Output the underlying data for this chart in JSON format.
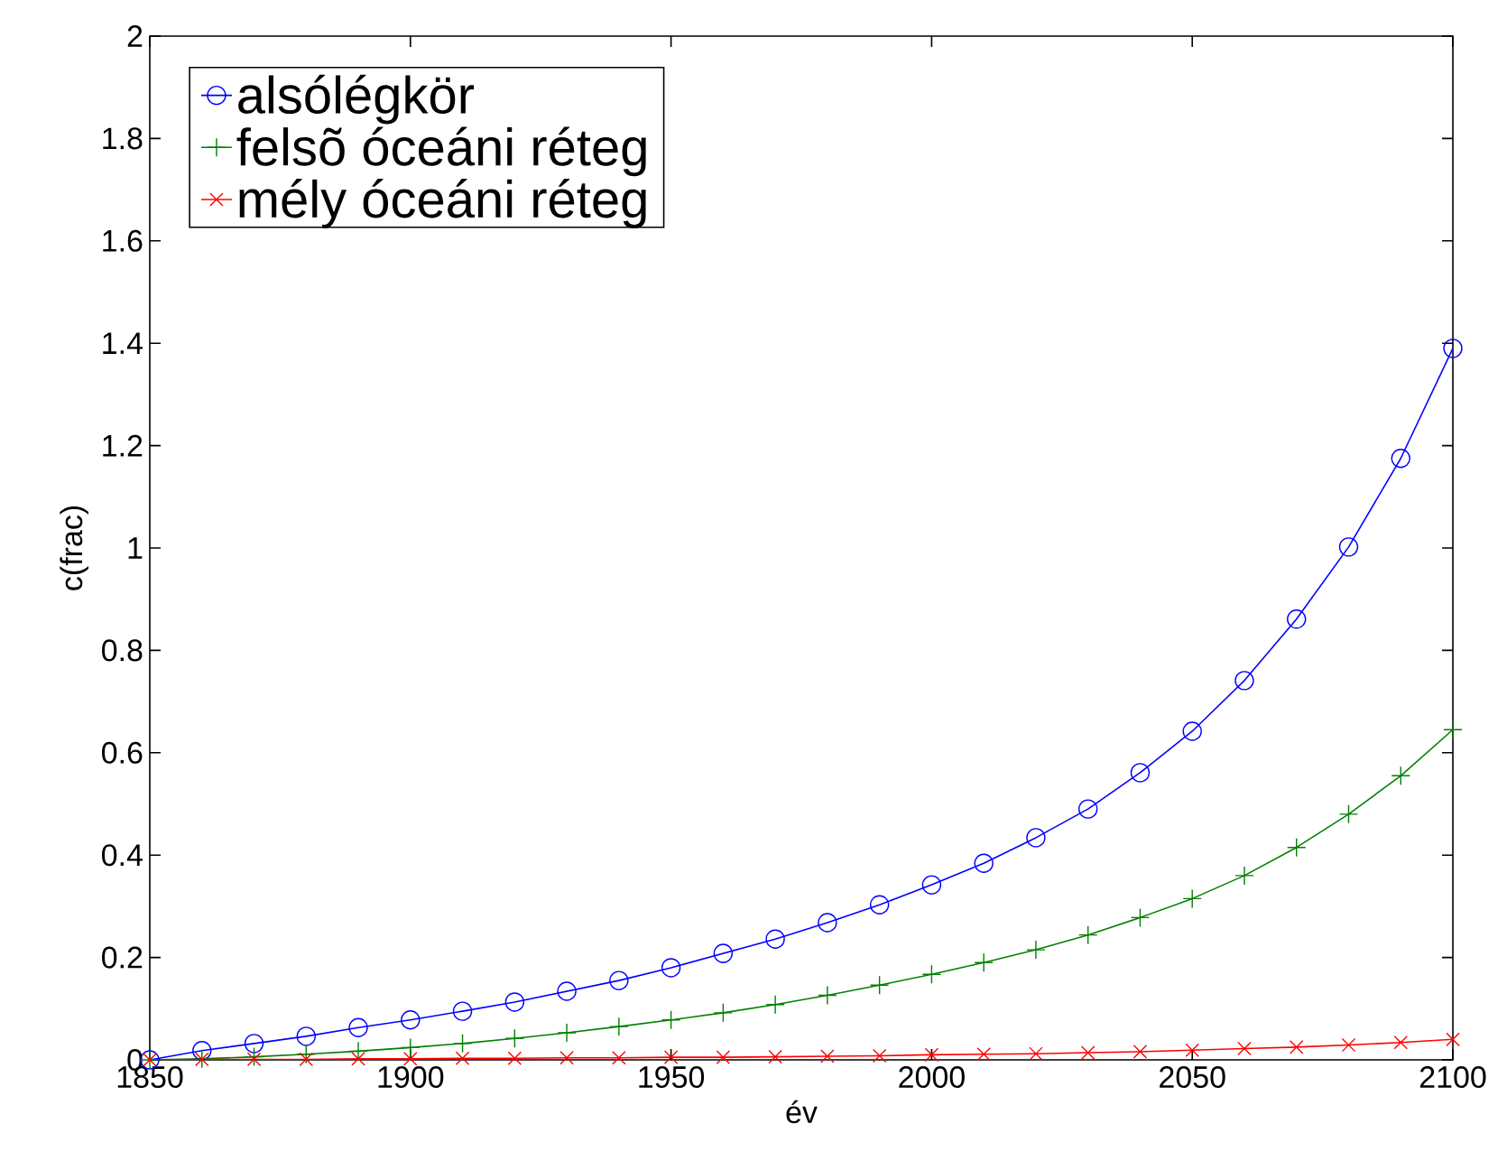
{
  "chart_data": {
    "type": "line",
    "xlabel": "év",
    "ylabel": "c(frac)",
    "x": [
      1850,
      1860,
      1870,
      1880,
      1890,
      1900,
      1910,
      1920,
      1930,
      1940,
      1950,
      1960,
      1970,
      1980,
      1990,
      2000,
      2010,
      2020,
      2030,
      2040,
      2050,
      2060,
      2070,
      2080,
      2090,
      2100
    ],
    "series": [
      {
        "name": "alsólégkör",
        "color": "#0000ff",
        "marker": "circle",
        "values": [
          0,
          0.018,
          0.032,
          0.046,
          0.063,
          0.078,
          0.095,
          0.113,
          0.134,
          0.155,
          0.18,
          0.208,
          0.236,
          0.268,
          0.303,
          0.342,
          0.384,
          0.434,
          0.49,
          0.561,
          0.642,
          0.741,
          0.861,
          1.002,
          1.175,
          1.39
        ]
      },
      {
        "name": "felsõ óceáni réteg",
        "color": "#008000",
        "marker": "plus",
        "values": [
          0,
          0.002,
          0.006,
          0.011,
          0.017,
          0.024,
          0.032,
          0.042,
          0.053,
          0.065,
          0.078,
          0.092,
          0.108,
          0.126,
          0.146,
          0.167,
          0.19,
          0.215,
          0.244,
          0.278,
          0.315,
          0.36,
          0.415,
          0.48,
          0.555,
          0.645
        ]
      },
      {
        "name": "mély óceáni réteg",
        "color": "#ff0000",
        "marker": "cross",
        "values": [
          0,
          0.001,
          0.001,
          0.001,
          0.002,
          0.002,
          0.003,
          0.003,
          0.004,
          0.004,
          0.005,
          0.005,
          0.006,
          0.007,
          0.008,
          0.01,
          0.011,
          0.012,
          0.014,
          0.016,
          0.019,
          0.022,
          0.025,
          0.029,
          0.034,
          0.04
        ]
      }
    ],
    "xlim": [
      1850,
      2100
    ],
    "xticks": [
      1850,
      1900,
      1950,
      2000,
      2050,
      2100
    ],
    "ylim": [
      0,
      2
    ],
    "yticks": [
      0,
      0.2,
      0.4,
      0.6,
      0.8,
      1,
      1.2,
      1.4,
      1.6,
      1.8,
      2
    ],
    "grid": false,
    "legend": "top left",
    "line_style": "solid"
  }
}
